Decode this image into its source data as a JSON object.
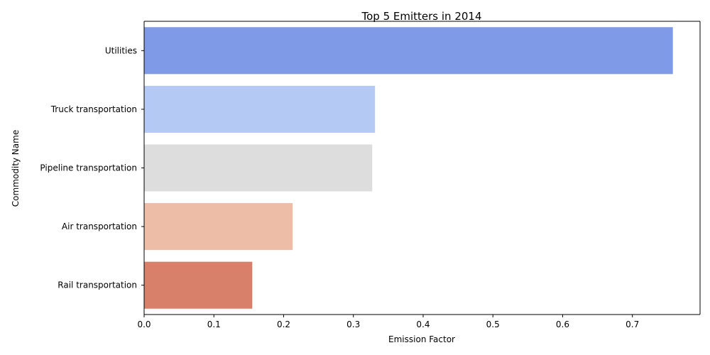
{
  "chart_data": {
    "type": "bar",
    "orientation": "horizontal",
    "title": "Top 5 Emitters in 2014",
    "xlabel": "Emission Factor",
    "ylabel": "Commodity Name",
    "categories": [
      "Utilities",
      "Truck transportation",
      "Pipeline transportation",
      "Air transportation",
      "Rail transportation"
    ],
    "values": [
      0.758,
      0.331,
      0.327,
      0.213,
      0.155
    ],
    "colors": [
      "#7f9ae6",
      "#b5c9f5",
      "#dddddd",
      "#edbda7",
      "#d9806b"
    ],
    "xlim": [
      0,
      0.797
    ],
    "xticks": [
      0.0,
      0.1,
      0.2,
      0.3,
      0.4,
      0.5,
      0.6,
      0.7
    ],
    "xtick_labels": [
      "0.0",
      "0.1",
      "0.2",
      "0.3",
      "0.4",
      "0.5",
      "0.6",
      "0.7"
    ],
    "grid": false,
    "legend": "none"
  }
}
